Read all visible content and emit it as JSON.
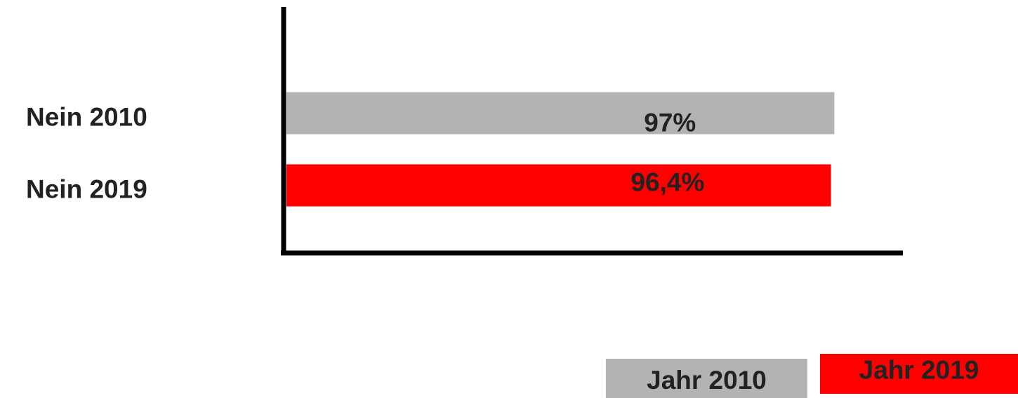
{
  "chart_data": {
    "type": "bar",
    "orientation": "horizontal",
    "categories": [
      "Nein 2010",
      "Nein 2019"
    ],
    "series": [
      {
        "name": "Jahr 2010",
        "color": "#b3b3b3",
        "values": [
          97,
          null
        ],
        "value_labels": [
          "97%",
          null
        ]
      },
      {
        "name": "Jahr 2019",
        "color": "#ff0000",
        "values": [
          null,
          96.4
        ],
        "value_labels": [
          null,
          "96,4%"
        ]
      }
    ],
    "xlim": [
      0,
      109
    ]
  }
}
